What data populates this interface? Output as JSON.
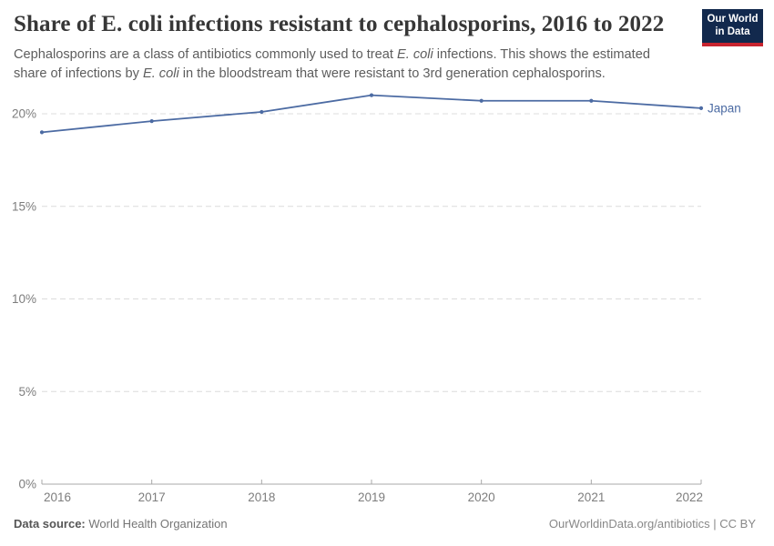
{
  "header": {
    "title": "Share of E. coli infections resistant to cephalosporins, 2016 to 2022",
    "subtitle_lines": [
      [
        {
          "t": "Cephalosporins are a class of antibiotics commonly used to treat "
        },
        {
          "t": "E. coli",
          "i": true
        },
        {
          "t": " infections. This shows the estimated"
        }
      ],
      [
        {
          "t": "share of infections by "
        },
        {
          "t": "E. coli",
          "i": true
        },
        {
          "t": " in the bloodstream that were resistant to 3rd generation cephalosporins."
        }
      ]
    ]
  },
  "logo": {
    "line1": "Our World",
    "line2": "in Data",
    "bg_color": "#12294d",
    "bar_color": "#c8242f"
  },
  "chart_data": {
    "type": "line",
    "title": "Share of E. coli infections resistant to cephalosporins, 2016 to 2022",
    "x": [
      2016,
      2017,
      2018,
      2019,
      2020,
      2021,
      2022
    ],
    "series": [
      {
        "name": "Japan",
        "values": [
          19.0,
          19.6,
          20.1,
          21.0,
          20.7,
          20.7,
          20.3
        ],
        "color": "#4c6ba3"
      }
    ],
    "xlabel": "",
    "ylabel": "",
    "y_ticks": [
      0,
      5,
      10,
      15,
      20
    ],
    "y_tick_labels": [
      "0%",
      "5%",
      "10%",
      "15%",
      "20%"
    ],
    "ylim": [
      0,
      21.5
    ],
    "grid": "horizontal-dashed",
    "legend_position": "right-of-line-label",
    "grid_color": "#dcdcdc",
    "axis_color": "#a8a8a8",
    "tick_label_color": "#7d7d7d"
  },
  "footer": {
    "source_label": "Data source:",
    "source_value": " World Health Organization",
    "license": "OurWorldinData.org/antibiotics | CC BY"
  }
}
